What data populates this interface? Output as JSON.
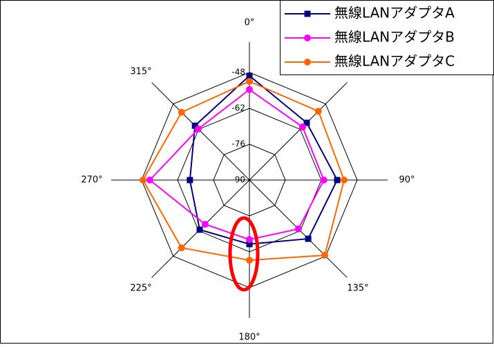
{
  "chart_data": {
    "type": "radar",
    "categories": [
      "0°",
      "45°",
      "90°",
      "135°",
      "180°",
      "225°",
      "270°",
      "315°"
    ],
    "ylim": [
      -90,
      -48
    ],
    "yticks": [
      -48,
      -62,
      -76,
      -90
    ],
    "series": [
      {
        "name": "無線LANアダプタA",
        "color": "#000080",
        "marker": "square",
        "values": [
          -49.3,
          -58.4,
          -55.8,
          -57.6,
          -65,
          -62.6,
          -66.8,
          -60
        ]
      },
      {
        "name": "無線LANアダプタB",
        "color": "#ff00ff",
        "marker": "circle",
        "values": [
          -54.7,
          -60.7,
          -61,
          -63,
          -66.8,
          -65.6,
          -51.2,
          -61.8
        ]
      },
      {
        "name": "無線LANアダプタC",
        "color": "#ff6600",
        "marker": "circle",
        "values": [
          -51.5,
          -52,
          -53.1,
          -48.5,
          -58.7,
          -52.6,
          -48.5,
          -52.6
        ]
      }
    ]
  }
}
